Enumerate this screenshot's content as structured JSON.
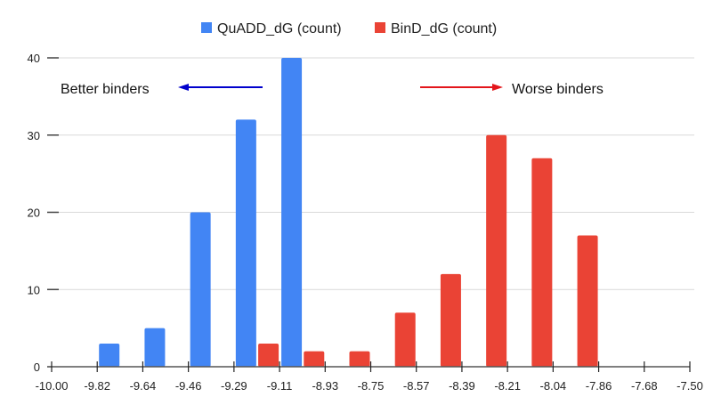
{
  "chart_data": {
    "type": "bar",
    "title": "",
    "xlabel": "",
    "ylabel": "",
    "x_ticks": [
      "-10.00",
      "-9.82",
      "-9.64",
      "-9.46",
      "-9.29",
      "-9.11",
      "-8.93",
      "-8.75",
      "-8.57",
      "-8.39",
      "-8.21",
      "-8.04",
      "-7.86",
      "-7.68",
      "-7.50"
    ],
    "y_ticks": [
      "0",
      "10",
      "20",
      "30",
      "40"
    ],
    "ylim": [
      0,
      40
    ],
    "xlim": [
      -10.0,
      -7.5
    ],
    "grid": true,
    "legend_position": "top-center",
    "series": [
      {
        "name": "QuADD_dG (count)",
        "color": "#4285f4",
        "bins": [
          {
            "bin_start": "-9.82",
            "bin_end": "-9.64",
            "value": 3
          },
          {
            "bin_start": "-9.64",
            "bin_end": "-9.46",
            "value": 5
          },
          {
            "bin_start": "-9.46",
            "bin_end": "-9.29",
            "value": 20
          },
          {
            "bin_start": "-9.29",
            "bin_end": "-9.11",
            "value": 32
          },
          {
            "bin_start": "-9.11",
            "bin_end": "-8.93",
            "value": 40
          }
        ]
      },
      {
        "name": "BinD_dG (count)",
        "color": "#ea4335",
        "bins": [
          {
            "bin_start": "-9.29",
            "bin_end": "-9.11",
            "value": 3
          },
          {
            "bin_start": "-9.11",
            "bin_end": "-8.93",
            "value": 2
          },
          {
            "bin_start": "-8.93",
            "bin_end": "-8.75",
            "value": 2
          },
          {
            "bin_start": "-8.75",
            "bin_end": "-8.57",
            "value": 7
          },
          {
            "bin_start": "-8.57",
            "bin_end": "-8.39",
            "value": 12
          },
          {
            "bin_start": "-8.39",
            "bin_end": "-8.21",
            "value": 30
          },
          {
            "bin_start": "-8.21",
            "bin_end": "-8.04",
            "value": 27
          },
          {
            "bin_start": "-8.04",
            "bin_end": "-7.86",
            "value": 17
          }
        ]
      }
    ],
    "annotations": [
      {
        "text": "Better binders",
        "arrow": "left",
        "color": "#0000cc"
      },
      {
        "text": "Worse binders",
        "arrow": "right",
        "color": "#e3161b"
      }
    ]
  }
}
